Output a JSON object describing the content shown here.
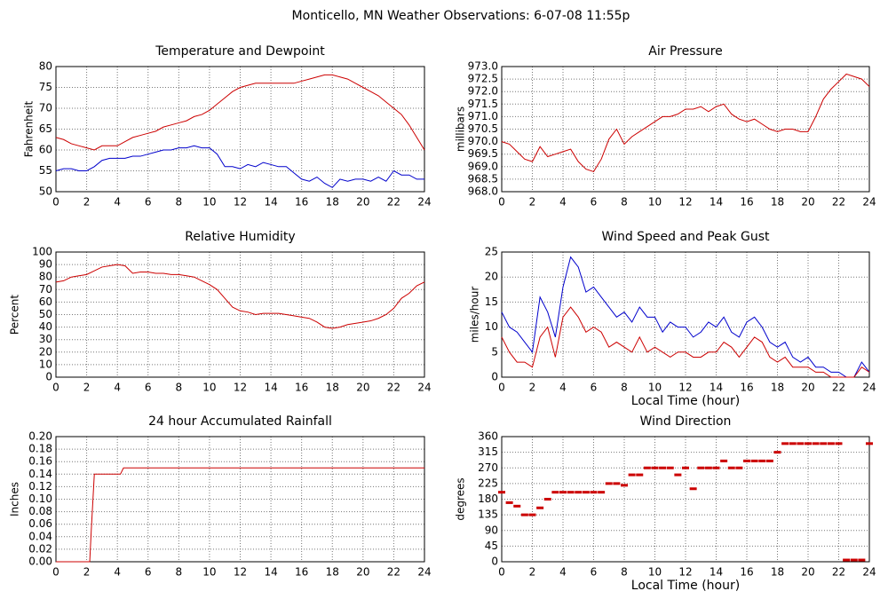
{
  "title": "Monticello, MN Weather Observations: 6-07-08 11:55p",
  "chart_data": [
    {
      "type": "line",
      "title": "Temperature and Dewpoint",
      "ylabel": "Fahrenheit",
      "x": [
        0,
        0.5,
        1,
        1.5,
        2,
        2.5,
        3,
        3.5,
        4,
        4.5,
        5,
        5.5,
        6,
        6.5,
        7,
        7.5,
        8,
        8.5,
        9,
        9.5,
        10,
        10.5,
        11,
        11.5,
        12,
        12.5,
        13,
        13.5,
        14,
        14.5,
        15,
        15.5,
        16,
        16.5,
        17,
        17.5,
        18,
        18.5,
        19,
        19.5,
        20,
        20.5,
        21,
        21.5,
        22,
        22.5,
        23,
        23.5,
        24
      ],
      "series": [
        {
          "color": "#cc0000",
          "values": [
            63,
            62.5,
            61.5,
            61,
            60.5,
            60,
            61,
            61,
            61,
            62,
            63,
            63.5,
            64,
            64.5,
            65.5,
            66,
            66.5,
            67,
            68,
            68.5,
            69.5,
            71,
            72.5,
            74,
            75,
            75.5,
            76,
            76,
            76,
            76,
            76,
            76,
            76.5,
            77,
            77.5,
            78,
            78,
            77.5,
            77,
            76,
            75,
            74,
            73,
            71.5,
            70,
            68.5,
            66,
            63,
            60
          ]
        },
        {
          "color": "#0000cc",
          "values": [
            55,
            55.5,
            55.5,
            55,
            55,
            56,
            57.5,
            58,
            58,
            58,
            58.5,
            58.5,
            59,
            59.5,
            60,
            60,
            60.5,
            60.5,
            61,
            60.5,
            60.5,
            59,
            56,
            56,
            55.5,
            56.5,
            56,
            57,
            56.5,
            56,
            56,
            54.5,
            53,
            52.5,
            53.5,
            52,
            51,
            53,
            52.5,
            53,
            53,
            52.5,
            53.5,
            52.5,
            55,
            54,
            54,
            53,
            53
          ]
        }
      ],
      "xlim": [
        0,
        24
      ],
      "xticks": [
        0,
        2,
        4,
        6,
        8,
        10,
        12,
        14,
        16,
        18,
        20,
        22,
        24
      ],
      "ylim": [
        50,
        80
      ],
      "yticks": [
        50,
        55,
        60,
        65,
        70,
        75,
        80
      ],
      "grid": true
    },
    {
      "type": "line",
      "title": "Air Pressure",
      "ylabel": "millibars",
      "x": [
        0,
        0.5,
        1,
        1.5,
        2,
        2.5,
        3,
        3.5,
        4,
        4.5,
        5,
        5.5,
        6,
        6.5,
        7,
        7.5,
        8,
        8.5,
        9,
        9.5,
        10,
        10.5,
        11,
        11.5,
        12,
        12.5,
        13,
        13.5,
        14,
        14.5,
        15,
        15.5,
        16,
        16.5,
        17,
        17.5,
        18,
        18.5,
        19,
        19.5,
        20,
        20.5,
        21,
        21.5,
        22,
        22.5,
        23,
        23.5,
        24
      ],
      "series": [
        {
          "color": "#cc0000",
          "values": [
            970.0,
            969.9,
            969.6,
            969.3,
            969.2,
            969.8,
            969.4,
            969.5,
            969.6,
            969.7,
            969.2,
            968.9,
            968.8,
            969.3,
            970.1,
            970.5,
            969.9,
            970.2,
            970.4,
            970.6,
            970.8,
            971.0,
            971.0,
            971.1,
            971.3,
            971.3,
            971.4,
            971.2,
            971.4,
            971.5,
            971.1,
            970.9,
            970.8,
            970.9,
            970.7,
            970.5,
            970.4,
            970.5,
            970.5,
            970.4,
            970.4,
            971.0,
            971.7,
            972.1,
            972.4,
            972.7,
            972.6,
            972.5,
            972.2
          ]
        }
      ],
      "xlim": [
        0,
        24
      ],
      "xticks": [
        0,
        2,
        4,
        6,
        8,
        10,
        12,
        14,
        16,
        18,
        20,
        22,
        24
      ],
      "ylim": [
        968,
        973
      ],
      "yticks": [
        {
          "value": 968,
          "label": "968.0"
        },
        968.5,
        {
          "value": 969,
          "label": "969.0"
        },
        969.5,
        {
          "value": 970,
          "label": "970.0"
        },
        970.5,
        {
          "value": 971,
          "label": "971.0"
        },
        971.5,
        {
          "value": 972,
          "label": "972.0"
        },
        972.5,
        {
          "value": 973,
          "label": "973.0"
        }
      ],
      "grid": true
    },
    {
      "type": "line",
      "title": "Relative Humidity",
      "ylabel": "Percent",
      "x": [
        0,
        0.5,
        1,
        1.5,
        2,
        2.5,
        3,
        3.5,
        4,
        4.5,
        5,
        5.5,
        6,
        6.5,
        7,
        7.5,
        8,
        8.5,
        9,
        9.5,
        10,
        10.5,
        11,
        11.5,
        12,
        12.5,
        13,
        13.5,
        14,
        14.5,
        15,
        15.5,
        16,
        16.5,
        17,
        17.5,
        18,
        18.5,
        19,
        19.5,
        20,
        20.5,
        21,
        21.5,
        22,
        22.5,
        23,
        23.5,
        24
      ],
      "series": [
        {
          "color": "#cc0000",
          "values": [
            76,
            77,
            80,
            81,
            82,
            85,
            88,
            89,
            90,
            89,
            83,
            84,
            84,
            83,
            83,
            82,
            82,
            81,
            80,
            77,
            74,
            70,
            63,
            56,
            53,
            52,
            50,
            51,
            51,
            51,
            50,
            49,
            48,
            47,
            44,
            40,
            39,
            40,
            42,
            43,
            44,
            45,
            47,
            50,
            55,
            63,
            67,
            73,
            76
          ]
        }
      ],
      "xlim": [
        0,
        24
      ],
      "xticks": [
        0,
        2,
        4,
        6,
        8,
        10,
        12,
        14,
        16,
        18,
        20,
        22,
        24
      ],
      "ylim": [
        0,
        100
      ],
      "yticks": [
        0,
        10,
        20,
        30,
        40,
        50,
        60,
        70,
        80,
        90,
        100
      ],
      "grid": true
    },
    {
      "type": "line",
      "title": "Wind Speed and Peak Gust",
      "ylabel": "miles/hour",
      "xlabel": "Local Time (hour)",
      "x": [
        0,
        0.5,
        1,
        1.5,
        2,
        2.5,
        3,
        3.5,
        4,
        4.5,
        5,
        5.5,
        6,
        6.5,
        7,
        7.5,
        8,
        8.5,
        9,
        9.5,
        10,
        10.5,
        11,
        11.5,
        12,
        12.5,
        13,
        13.5,
        14,
        14.5,
        15,
        15.5,
        16,
        16.5,
        17,
        17.5,
        18,
        18.5,
        19,
        19.5,
        20,
        20.5,
        21,
        21.5,
        22,
        22.5,
        23,
        23.5,
        24
      ],
      "series": [
        {
          "color": "#0000cc",
          "values": [
            13,
            10,
            9,
            7,
            5,
            16,
            13,
            8,
            18,
            24,
            22,
            17,
            18,
            16,
            14,
            12,
            13,
            11,
            14,
            12,
            12,
            9,
            11,
            10,
            10,
            8,
            9,
            11,
            10,
            12,
            9,
            8,
            11,
            12,
            10,
            7,
            6,
            7,
            4,
            3,
            4,
            2,
            2,
            1,
            1,
            0,
            0,
            3,
            1
          ]
        },
        {
          "color": "#cc0000",
          "values": [
            8,
            5,
            3,
            3,
            2,
            8,
            10,
            4,
            12,
            14,
            12,
            9,
            10,
            9,
            6,
            7,
            6,
            5,
            8,
            5,
            6,
            5,
            4,
            5,
            5,
            4,
            4,
            5,
            5,
            7,
            6,
            4,
            6,
            8,
            7,
            4,
            3,
            4,
            2,
            2,
            2,
            1,
            1,
            0,
            0,
            0,
            0,
            2,
            1
          ]
        }
      ],
      "xlim": [
        0,
        24
      ],
      "xticks": [
        0,
        2,
        4,
        6,
        8,
        10,
        12,
        14,
        16,
        18,
        20,
        22,
        24
      ],
      "ylim": [
        0,
        25
      ],
      "yticks": [
        0,
        5,
        10,
        15,
        20,
        25
      ],
      "grid": true
    },
    {
      "type": "line",
      "title": "24 hour Accumulated Rainfall",
      "ylabel": "Inches",
      "x": [
        0,
        2.2,
        2.3,
        2.5,
        4.2,
        4.4,
        24
      ],
      "series": [
        {
          "color": "#cc0000",
          "values": [
            0,
            0,
            0.05,
            0.14,
            0.14,
            0.15,
            0.15
          ]
        }
      ],
      "xlim": [
        0,
        24
      ],
      "xticks": [
        0,
        2,
        4,
        6,
        8,
        10,
        12,
        14,
        16,
        18,
        20,
        22,
        24
      ],
      "ylim": [
        0,
        0.2
      ],
      "yticks": [
        {
          "value": 0,
          "label": "0.00"
        },
        0.02,
        0.04,
        0.06,
        0.08,
        {
          "value": 0.1,
          "label": "0.10"
        },
        0.12,
        0.14,
        0.16,
        0.18,
        {
          "value": 0.2,
          "label": "0.20"
        }
      ],
      "grid": true
    },
    {
      "type": "scatter",
      "title": "Wind Direction",
      "ylabel": "degrees",
      "xlabel": "Local Time (hour)",
      "x": [
        0,
        0.5,
        1,
        1.5,
        2,
        2.5,
        3,
        3.5,
        4,
        4.5,
        5,
        5.5,
        6,
        6.5,
        7,
        7.5,
        8,
        8.5,
        9,
        9.5,
        10,
        10.5,
        11,
        11.5,
        12,
        12.5,
        13,
        13.5,
        14,
        14.5,
        15,
        15.5,
        16,
        16.5,
        17,
        17.5,
        18,
        18.5,
        19,
        19.5,
        20,
        20.5,
        21,
        21.5,
        22,
        22.5,
        23,
        23.5,
        24
      ],
      "series": [
        {
          "color": "#cc0000",
          "values": [
            200,
            170,
            160,
            135,
            135,
            155,
            180,
            200,
            200,
            200,
            200,
            200,
            200,
            200,
            225,
            225,
            220,
            250,
            250,
            270,
            270,
            270,
            270,
            250,
            270,
            210,
            270,
            270,
            270,
            290,
            270,
            270,
            290,
            290,
            290,
            290,
            315,
            340,
            340,
            340,
            340,
            340,
            340,
            340,
            340,
            5,
            5,
            5,
            340
          ]
        }
      ],
      "xlim": [
        0,
        24
      ],
      "xticks": [
        0,
        2,
        4,
        6,
        8,
        10,
        12,
        14,
        16,
        18,
        20,
        22,
        24
      ],
      "ylim": [
        0,
        360
      ],
      "yticks": [
        0,
        45,
        90,
        135,
        180,
        225,
        270,
        315,
        360
      ],
      "grid": true
    }
  ]
}
